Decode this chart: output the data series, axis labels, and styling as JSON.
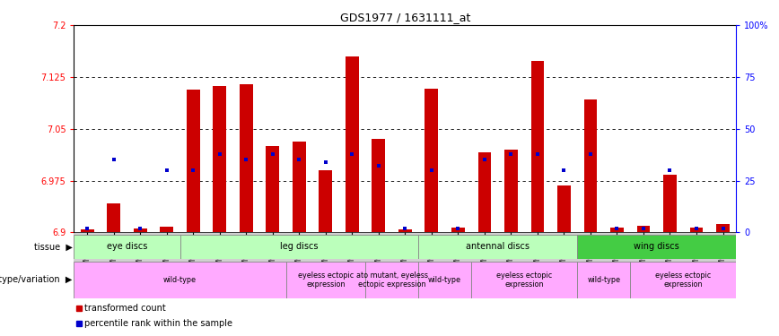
{
  "title": "GDS1977 / 1631111_at",
  "samples": [
    "GSM91570",
    "GSM91585",
    "GSM91609",
    "GSM91616",
    "GSM91617",
    "GSM91618",
    "GSM91619",
    "GSM91478",
    "GSM91479",
    "GSM91480",
    "GSM91472",
    "GSM91473",
    "GSM91474",
    "GSM91484",
    "GSM91491",
    "GSM91515",
    "GSM91475",
    "GSM91476",
    "GSM91477",
    "GSM91620",
    "GSM91621",
    "GSM91622",
    "GSM91481",
    "GSM91482",
    "GSM91483"
  ],
  "red_values": [
    6.905,
    6.942,
    6.906,
    6.908,
    7.107,
    7.112,
    7.115,
    7.025,
    7.032,
    6.99,
    7.155,
    7.036,
    6.905,
    7.108,
    6.907,
    7.016,
    7.02,
    7.148,
    6.968,
    7.093,
    6.907,
    6.91,
    6.984,
    6.907,
    6.912
  ],
  "blue_values_pct": [
    2,
    35,
    2,
    30,
    30,
    38,
    35,
    38,
    35,
    34,
    38,
    32,
    2,
    30,
    2,
    35,
    38,
    38,
    30,
    38,
    2,
    2,
    30,
    2,
    2
  ],
  "y_min": 6.9,
  "y_max": 7.2,
  "y_ticks_red": [
    6.9,
    6.975,
    7.05,
    7.125,
    7.2
  ],
  "y_ticks_blue_pct": [
    0,
    25,
    50,
    75,
    100
  ],
  "tissue_groups": [
    {
      "label": "eye discs",
      "start": 0,
      "end": 4,
      "color": "#bbffbb"
    },
    {
      "label": "leg discs",
      "start": 4,
      "end": 13,
      "color": "#bbffbb"
    },
    {
      "label": "antennal discs",
      "start": 13,
      "end": 19,
      "color": "#bbffbb"
    },
    {
      "label": "wing discs",
      "start": 19,
      "end": 25,
      "color": "#44cc44"
    }
  ],
  "genotype_groups": [
    {
      "label": "wild-type",
      "start": 0,
      "end": 8
    },
    {
      "label": "eyeless ectopic\nexpression",
      "start": 8,
      "end": 11
    },
    {
      "label": "ato mutant, eyeless\nectopic expression",
      "start": 11,
      "end": 13
    },
    {
      "label": "wild-type",
      "start": 13,
      "end": 15
    },
    {
      "label": "eyeless ectopic\nexpression",
      "start": 15,
      "end": 19
    },
    {
      "label": "wild-type",
      "start": 19,
      "end": 21
    },
    {
      "label": "eyeless ectopic\nexpression",
      "start": 21,
      "end": 25
    }
  ],
  "bar_color": "#cc0000",
  "dot_color": "#0000cc",
  "geno_color": "#ffaaff",
  "xtick_bg": "#d0d0d0"
}
